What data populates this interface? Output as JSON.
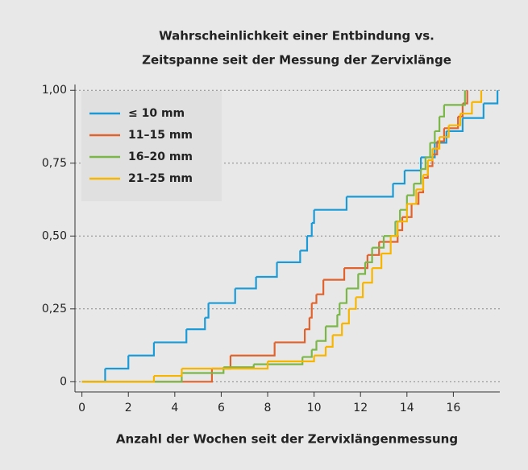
{
  "chart_data": {
    "type": "step",
    "title": [
      "Wahrscheinlichkeit einer Entbindung vs.",
      "Zeitspanne seit der Messung der Zervixlänge"
    ],
    "x_label": "Anzahl der Wochen seit der Zervixlängenmessung",
    "xlim": [
      -0.3,
      18
    ],
    "ylim": [
      -0.035,
      1.02
    ],
    "xticks": [
      0,
      2,
      4,
      6,
      8,
      10,
      12,
      14,
      16
    ],
    "yticks": [
      0,
      {
        "value": 0.25,
        "label": "0,25"
      },
      {
        "value": 0.5,
        "label": "0,50"
      },
      {
        "value": 0.75,
        "label": "0,75"
      },
      {
        "value": 1,
        "label": "1,00"
      }
    ],
    "grid": true,
    "legend": "upper left",
    "series": [
      {
        "name": "≤ 10 mm",
        "color": "#1a9ad6",
        "x": [
          0,
          1.0,
          2.0,
          3.1,
          4.5,
          5.3,
          5.45,
          6.6,
          7.5,
          8.4,
          9.4,
          9.7,
          9.9,
          10.0,
          11.4,
          13.4,
          13.9,
          14.6,
          15.2,
          15.7,
          16.4,
          17.3,
          17.9
        ],
        "values": [
          0,
          0.045,
          0.09,
          0.135,
          0.18,
          0.22,
          0.27,
          0.32,
          0.36,
          0.41,
          0.45,
          0.5,
          0.545,
          0.59,
          0.635,
          0.68,
          0.725,
          0.77,
          0.82,
          0.86,
          0.905,
          0.955,
          1.0
        ]
      },
      {
        "name": "11–15 mm",
        "color": "#e0622d",
        "x": [
          0,
          5.6,
          6.4,
          8.3,
          9.6,
          9.8,
          9.9,
          10.1,
          10.4,
          11.3,
          12.3,
          12.8,
          13.6,
          13.8,
          14.2,
          14.5,
          14.7,
          14.9,
          15.1,
          15.3,
          15.6,
          16.2,
          16.4,
          16.6
        ],
        "values": [
          0,
          0.045,
          0.09,
          0.135,
          0.18,
          0.22,
          0.27,
          0.3,
          0.35,
          0.39,
          0.435,
          0.48,
          0.52,
          0.565,
          0.61,
          0.65,
          0.7,
          0.74,
          0.78,
          0.825,
          0.87,
          0.91,
          0.955,
          1.0
        ]
      },
      {
        "name": "16–20 mm",
        "color": "#7ab648",
        "x": [
          0,
          4.3,
          6.1,
          7.4,
          9.5,
          9.9,
          10.1,
          10.5,
          11.0,
          11.1,
          11.4,
          11.9,
          12.2,
          12.5,
          13.0,
          13.5,
          13.7,
          14.0,
          14.3,
          14.6,
          14.8,
          15.0,
          15.2,
          15.4,
          15.6,
          16.5
        ],
        "values": [
          0,
          0.03,
          0.05,
          0.06,
          0.085,
          0.11,
          0.14,
          0.19,
          0.23,
          0.27,
          0.32,
          0.37,
          0.41,
          0.46,
          0.5,
          0.55,
          0.59,
          0.64,
          0.68,
          0.73,
          0.77,
          0.82,
          0.86,
          0.91,
          0.95,
          1.0
        ]
      },
      {
        "name": "21–25 mm",
        "color": "#f7b500",
        "x": [
          0,
          3.1,
          4.3,
          8.0,
          10.0,
          10.5,
          10.8,
          11.2,
          11.5,
          11.8,
          12.1,
          12.5,
          12.9,
          13.3,
          13.6,
          14.0,
          14.4,
          14.7,
          14.9,
          15.1,
          15.4,
          15.8,
          16.3,
          16.8,
          17.2
        ],
        "values": [
          0,
          0.02,
          0.045,
          0.07,
          0.09,
          0.12,
          0.16,
          0.2,
          0.25,
          0.29,
          0.34,
          0.39,
          0.44,
          0.5,
          0.55,
          0.61,
          0.66,
          0.71,
          0.76,
          0.8,
          0.84,
          0.88,
          0.92,
          0.96,
          1.0
        ]
      }
    ]
  }
}
